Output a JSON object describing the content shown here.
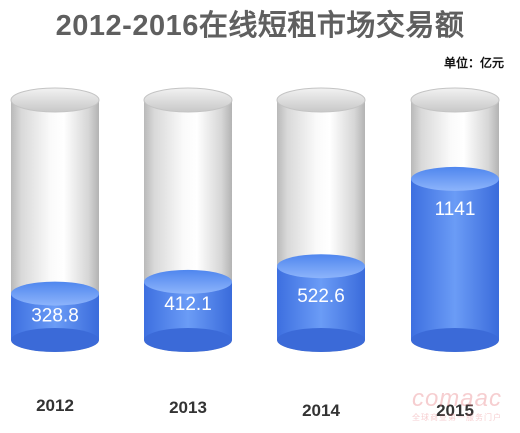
{
  "page": {
    "title": "2012-2016在线短租市场交易额",
    "unit_label": "单位：亿元"
  },
  "colors": {
    "cylinder_gray": "#cfcfcf",
    "fill_blue": "#5b8df0",
    "fill_blue_dark": "#2f64d8",
    "title_gray": "#5f5f5f"
  },
  "chart_data": {
    "type": "bar",
    "style": "3d-cylinder-fill",
    "title": "2012-2016在线短租市场交易额",
    "unit": "单位：亿元",
    "categories": [
      "2012",
      "2013",
      "2014",
      "2015"
    ],
    "values": [
      328.8,
      412.1,
      522.6,
      1141
    ],
    "value_labels": [
      "328.8",
      "412.1",
      "522.6",
      "1141"
    ],
    "ylim": [
      0,
      1700
    ],
    "grid": false,
    "legend": "none"
  },
  "watermark": {
    "main": "comaac",
    "sub": "全球商业第一服务门户"
  }
}
